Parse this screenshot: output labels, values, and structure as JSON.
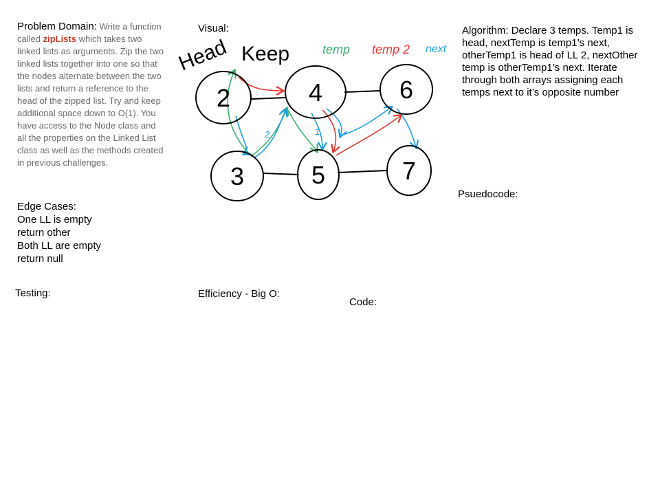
{
  "problem": {
    "label": "Problem Domain:",
    "text_before": " Write a function called ",
    "highlight": "zipLists",
    "text_after": " which takes two linked lists as arguments. Zip the two linked lists together into one so that the nodes alternate between the two lists and return a reference to the head of the zipped list. Try and keep additional space down to O(1). You have access to the Node class and all the properties on the Linked List class as well as the methods created in previous challenges."
  },
  "edge_cases": {
    "label": "Edge Cases:",
    "lines": [
      "One LL is empty",
      "return other",
      "Both LL are empty",
      "return null"
    ]
  },
  "testing": {
    "label": "Testing:"
  },
  "visual": {
    "label": "Visual:"
  },
  "efficiency": {
    "label": "Efficiency - Big O:"
  },
  "code": {
    "label": "Code:"
  },
  "algorithm": {
    "text": "Algorithm: Declare 3 temps. Temp1 is head, nextTemp is temp1’s next, otherTemp1 is head of LL 2, nextOther temp is otherTemp1’s next. Iterate through both arrays assigning each temps next to it’s opposite number"
  },
  "pseudocode": {
    "label": "Psuedocode:"
  },
  "diagram": {
    "annotations": {
      "head": "Head",
      "keep": "Keep",
      "temp": "temp",
      "temp2": "temp 2",
      "next": "next"
    },
    "colors": {
      "temp": "#3cb371",
      "temp2": "#e53935",
      "next": "#1e9fe0",
      "ink": "#000000"
    },
    "list1": [
      "2",
      "4",
      "6"
    ],
    "list2": [
      "3",
      "5",
      "7"
    ],
    "arrow_labels": [
      "2",
      "1"
    ]
  }
}
